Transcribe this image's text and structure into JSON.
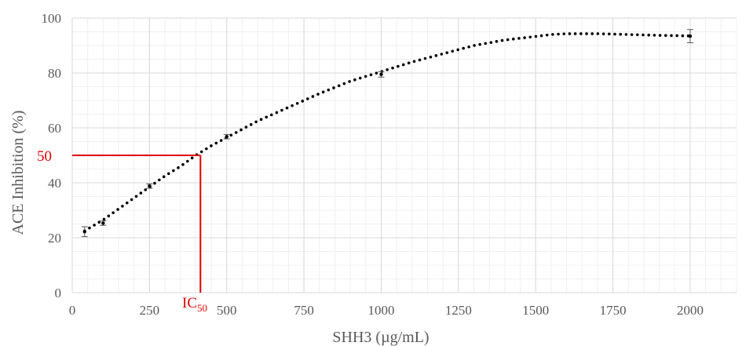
{
  "chart_data": {
    "type": "scatter",
    "xlabel": "SHH3 (µg/mL)",
    "ylabel": "ACE Inhibition (%)",
    "xlim": [
      0,
      2150
    ],
    "ylim": [
      0,
      100
    ],
    "x_ticks": [
      0,
      250,
      500,
      750,
      1000,
      1250,
      1500,
      1750,
      2000
    ],
    "x_tick_labels": [
      "0",
      "250",
      "500",
      "750",
      "1000",
      "1250",
      "1500",
      "1750",
      "2000"
    ],
    "y_ticks": [
      0,
      20,
      40,
      60,
      80,
      100
    ],
    "y_tick_labels": [
      "0",
      "20",
      "40",
      "60",
      "80",
      "100"
    ],
    "grid": true,
    "measured_points": [
      {
        "x": 40,
        "y": 22.2,
        "err": 1.8
      },
      {
        "x": 100,
        "y": 25.3,
        "err": 0.8
      },
      {
        "x": 250,
        "y": 38.8,
        "err": 0.8
      },
      {
        "x": 500,
        "y": 56.8,
        "err": 0.8
      },
      {
        "x": 1000,
        "y": 79.5,
        "err": 1.0
      },
      {
        "x": 2000,
        "y": 93.4,
        "err": 2.4
      }
    ],
    "fit_curve": {
      "x": [
        40,
        100,
        150,
        200,
        250,
        300,
        350,
        400,
        450,
        500,
        550,
        600,
        700,
        800,
        900,
        1000,
        1100,
        1200,
        1300,
        1400,
        1500,
        1550,
        1600,
        1700,
        1800,
        1900,
        2000
      ],
      "y": [
        22.5,
        26.5,
        30.5,
        34.5,
        38.5,
        42.5,
        46,
        50,
        53.5,
        56.5,
        59.5,
        62.5,
        67.5,
        72.5,
        77,
        80.5,
        84,
        87,
        90,
        92,
        93.3,
        94,
        94.3,
        94.3,
        94,
        93.7,
        93.5
      ]
    },
    "annotation": {
      "ic50_label_main": "IC",
      "ic50_label_sub": "50",
      "ic50_x": 415,
      "ic50_y": 50,
      "y50_label": "50"
    }
  }
}
